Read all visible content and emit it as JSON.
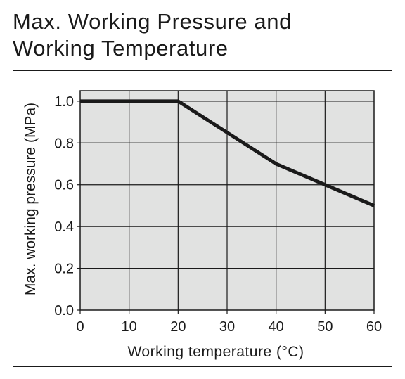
{
  "title_line1": "Max. Working Pressure and",
  "title_line2": "Working Temperature",
  "chart_data": {
    "type": "line",
    "title": "Max. Working Pressure and Working Temperature",
    "xlabel": "Working temperature (°C)",
    "ylabel": "Max. working pressure (MPa)",
    "xlim": [
      0,
      60
    ],
    "ylim": [
      0,
      1.05
    ],
    "x_ticks": [
      0,
      10,
      20,
      30,
      40,
      50,
      60
    ],
    "y_ticks": [
      0.0,
      0.2,
      0.4,
      0.6,
      0.8,
      1.0
    ],
    "x_tick_labels": [
      "0",
      "10",
      "20",
      "30",
      "40",
      "50",
      "60"
    ],
    "y_tick_labels": [
      "0.0",
      "0.2",
      "0.4",
      "0.6",
      "0.8",
      "1.0"
    ],
    "grid": true,
    "plot_background": "#e1e2e1",
    "line_color": "#1a1a1a",
    "series": [
      {
        "x": [
          0,
          20,
          30,
          40,
          50,
          60
        ],
        "y": [
          1.0,
          1.0,
          0.85,
          0.7,
          0.6,
          0.5
        ]
      }
    ]
  }
}
